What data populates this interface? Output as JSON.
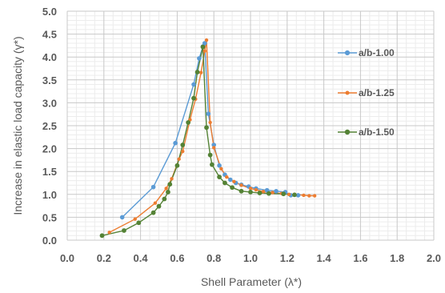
{
  "chart_data": {
    "type": "scatter",
    "title": "",
    "xlabel": "Shell Parameter (λ*)",
    "ylabel": "Increase in elastic load capacity (γ*)",
    "xlim": [
      0.0,
      2.0
    ],
    "ylim": [
      0.0,
      5.0
    ],
    "x_ticks": [
      "0.0",
      "0.2",
      "0.4",
      "0.6",
      "0.8",
      "1.0",
      "1.2",
      "1.4",
      "1.6",
      "1.8",
      "2.0"
    ],
    "y_ticks": [
      "0.0",
      "0.5",
      "1.0",
      "1.5",
      "2.0",
      "2.5",
      "3.0",
      "3.5",
      "4.0",
      "4.5",
      "5.0"
    ],
    "grid": "major and minor",
    "legend_position": "right",
    "series": [
      {
        "name": "a/b-1.00",
        "color": "#5b9bd5",
        "points": [
          [
            0.3,
            0.5
          ],
          [
            0.47,
            1.16
          ],
          [
            0.59,
            2.12
          ],
          [
            0.69,
            3.4
          ],
          [
            0.72,
            3.97
          ],
          [
            0.74,
            4.23
          ],
          [
            0.75,
            4.3
          ],
          [
            0.77,
            2.76
          ],
          [
            0.8,
            2.08
          ],
          [
            0.83,
            1.63
          ],
          [
            0.86,
            1.43
          ],
          [
            0.89,
            1.32
          ],
          [
            0.92,
            1.25
          ],
          [
            0.95,
            1.21
          ],
          [
            0.99,
            1.17
          ],
          [
            1.03,
            1.13
          ],
          [
            1.09,
            1.09
          ],
          [
            1.14,
            1.07
          ],
          [
            1.19,
            1.05
          ],
          [
            1.22,
            0.98
          ],
          [
            1.26,
            0.98
          ]
        ]
      },
      {
        "name": "a/b-1.25",
        "color": "#ed7d31",
        "points": [
          [
            0.23,
            0.17
          ],
          [
            0.37,
            0.46
          ],
          [
            0.48,
            0.81
          ],
          [
            0.54,
            1.13
          ],
          [
            0.57,
            1.34
          ],
          [
            0.61,
            1.77
          ],
          [
            0.63,
            1.94
          ],
          [
            0.67,
            2.63
          ],
          [
            0.7,
            3.08
          ],
          [
            0.73,
            3.66
          ],
          [
            0.75,
            4.13
          ],
          [
            0.76,
            4.37
          ],
          [
            0.78,
            2.57
          ],
          [
            0.8,
            2.02
          ],
          [
            0.84,
            1.56
          ],
          [
            0.87,
            1.38
          ],
          [
            0.91,
            1.28
          ],
          [
            0.95,
            1.2
          ],
          [
            1.0,
            1.13
          ],
          [
            1.03,
            1.1
          ],
          [
            1.07,
            1.06
          ],
          [
            1.12,
            1.04
          ],
          [
            1.17,
            1.02
          ],
          [
            1.21,
            1.0
          ],
          [
            1.24,
            1.0
          ],
          [
            1.29,
            0.98
          ],
          [
            1.32,
            0.97
          ],
          [
            1.35,
            0.97
          ]
        ]
      },
      {
        "name": "a/b-1.50",
        "color": "#548235",
        "points": [
          [
            0.19,
            0.1
          ],
          [
            0.31,
            0.21
          ],
          [
            0.39,
            0.38
          ],
          [
            0.47,
            0.6
          ],
          [
            0.5,
            0.74
          ],
          [
            0.53,
            0.9
          ],
          [
            0.55,
            1.05
          ],
          [
            0.56,
            1.22
          ],
          [
            0.6,
            1.63
          ],
          [
            0.63,
            2.08
          ],
          [
            0.66,
            2.57
          ],
          [
            0.69,
            3.1
          ],
          [
            0.71,
            3.67
          ],
          [
            0.74,
            4.22
          ],
          [
            0.76,
            2.46
          ],
          [
            0.78,
            1.86
          ],
          [
            0.79,
            1.65
          ],
          [
            0.83,
            1.38
          ],
          [
            0.86,
            1.25
          ],
          [
            0.9,
            1.15
          ],
          [
            0.95,
            1.07
          ],
          [
            1.0,
            1.05
          ],
          [
            1.05,
            1.03
          ],
          [
            1.1,
            1.02
          ],
          [
            1.18,
            1.01
          ],
          [
            1.24,
            0.99
          ]
        ]
      }
    ]
  }
}
